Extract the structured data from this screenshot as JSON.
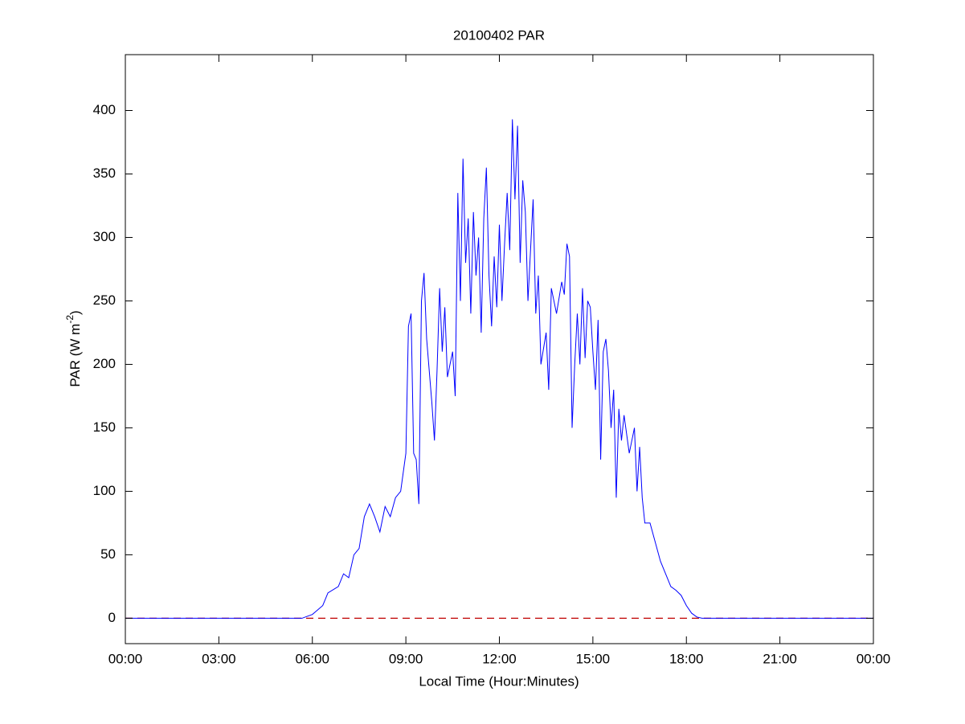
{
  "chart_data": {
    "type": "line",
    "title": "20100402 PAR",
    "xlabel": "Local Time (Hour:Minutes)",
    "ylabel": [
      "PAR (W m",
      "-2",
      ")"
    ],
    "xlim": [
      0,
      24
    ],
    "ylim": [
      -20,
      444
    ],
    "xticks": [
      {
        "value": 0,
        "label": "00:00"
      },
      {
        "value": 3,
        "label": "03:00"
      },
      {
        "value": 6,
        "label": "06:00"
      },
      {
        "value": 9,
        "label": "09:00"
      },
      {
        "value": 12,
        "label": "12:00"
      },
      {
        "value": 15,
        "label": "15:00"
      },
      {
        "value": 18,
        "label": "18:00"
      },
      {
        "value": 21,
        "label": "21:00"
      },
      {
        "value": 24,
        "label": "00:00"
      }
    ],
    "yticks": [
      0,
      50,
      100,
      150,
      200,
      250,
      300,
      350,
      400
    ],
    "grid": false,
    "reference_line": {
      "value": 0,
      "color": "#c00000",
      "dashed": true
    },
    "series": [
      {
        "color": "#0000ff",
        "x": [
          0,
          5.667,
          6,
          6.333,
          6.5,
          6.833,
          7,
          7.167,
          7.333,
          7.5,
          7.667,
          7.833,
          8,
          8.167,
          8.333,
          8.5,
          8.667,
          8.833,
          9,
          9.083,
          9.167,
          9.25,
          9.333,
          9.417,
          9.5,
          9.583,
          9.667,
          9.833,
          9.917,
          10,
          10.083,
          10.167,
          10.25,
          10.333,
          10.5,
          10.583,
          10.667,
          10.75,
          10.833,
          10.917,
          11,
          11.083,
          11.167,
          11.25,
          11.333,
          11.417,
          11.5,
          11.583,
          11.667,
          11.75,
          11.833,
          11.917,
          12,
          12.083,
          12.167,
          12.25,
          12.333,
          12.417,
          12.5,
          12.583,
          12.667,
          12.75,
          12.833,
          12.917,
          13,
          13.083,
          13.167,
          13.25,
          13.333,
          13.5,
          13.583,
          13.667,
          13.833,
          14,
          14.083,
          14.167,
          14.25,
          14.333,
          14.417,
          14.5,
          14.583,
          14.667,
          14.75,
          14.833,
          14.917,
          15,
          15.083,
          15.167,
          15.25,
          15.333,
          15.417,
          15.5,
          15.583,
          15.667,
          15.75,
          15.833,
          15.917,
          16,
          16.167,
          16.333,
          16.417,
          16.5,
          16.583,
          16.667,
          16.833,
          17,
          17.167,
          17.333,
          17.5,
          17.667,
          17.833,
          18,
          18.167,
          18.333,
          18.5,
          24
        ],
        "values": [
          0,
          0,
          3,
          10,
          20,
          25,
          35,
          32,
          50,
          55,
          80,
          90,
          80,
          68,
          88,
          80,
          95,
          100,
          130,
          230,
          240,
          130,
          125,
          90,
          250,
          272,
          220,
          170,
          140,
          195,
          260,
          210,
          245,
          190,
          210,
          175,
          335,
          250,
          362,
          280,
          315,
          240,
          320,
          270,
          300,
          225,
          315,
          355,
          270,
          230,
          285,
          245,
          310,
          250,
          295,
          335,
          290,
          393,
          330,
          388,
          280,
          345,
          320,
          250,
          290,
          330,
          240,
          270,
          200,
          225,
          180,
          260,
          240,
          265,
          255,
          295,
          285,
          150,
          200,
          240,
          200,
          260,
          205,
          250,
          245,
          210,
          180,
          235,
          125,
          210,
          220,
          195,
          150,
          180,
          95,
          165,
          140,
          160,
          130,
          150,
          100,
          135,
          95,
          75,
          75,
          60,
          45,
          35,
          25,
          22,
          18,
          10,
          4,
          1,
          0,
          0
        ]
      }
    ]
  }
}
